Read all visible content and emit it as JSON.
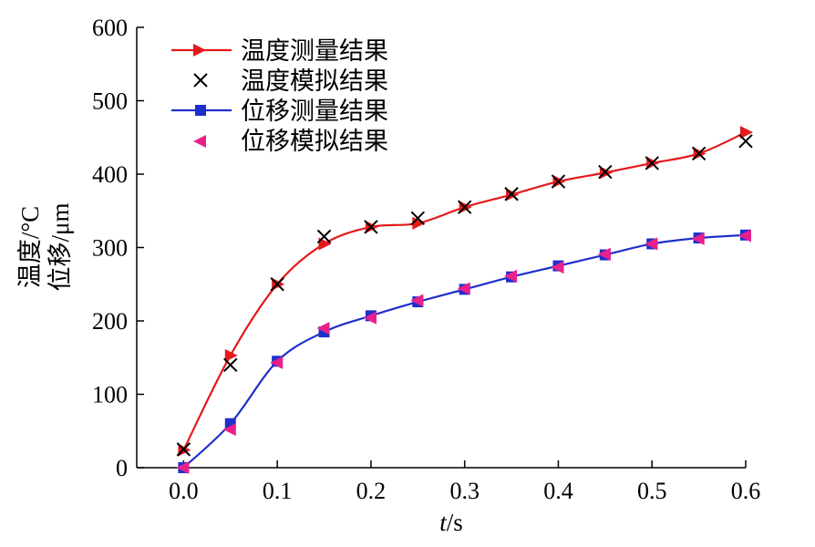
{
  "chart_data": {
    "type": "line",
    "x": [
      0.0,
      0.05,
      0.1,
      0.15,
      0.2,
      0.25,
      0.3,
      0.35,
      0.4,
      0.45,
      0.5,
      0.55,
      0.6
    ],
    "xticks": [
      "0.0",
      "0.1",
      "0.2",
      "0.3",
      "0.4",
      "0.5",
      "0.6"
    ],
    "xtick_values": [
      0.0,
      0.1,
      0.2,
      0.3,
      0.4,
      0.5,
      0.6
    ],
    "yticks": [
      "0",
      "100",
      "200",
      "300",
      "400",
      "500",
      "600"
    ],
    "ytick_values": [
      0,
      100,
      200,
      300,
      400,
      500,
      600
    ],
    "xlim": [
      -0.05,
      0.6
    ],
    "ylim": [
      0,
      600
    ],
    "xlabel_italic": "t",
    "xlabel_rest": "/s",
    "ylabel_line1": "温度/°C",
    "ylabel_line2": "位移/μm",
    "legend_position": "top-left",
    "series": [
      {
        "name": "温度测量结果",
        "kind": "line-marker",
        "marker": "triangle-right",
        "color": "#e41a1c",
        "values": [
          24,
          153,
          250,
          305,
          328,
          333,
          355,
          372,
          390,
          402,
          415,
          428,
          457
        ]
      },
      {
        "name": "温度模拟结果",
        "kind": "marker-only",
        "marker": "x",
        "color": "#000000",
        "values": [
          25,
          140,
          250,
          315,
          328,
          340,
          355,
          373,
          390,
          403,
          415,
          428,
          445
        ]
      },
      {
        "name": "位移测量结果",
        "kind": "line-marker",
        "marker": "square",
        "color": "#1f2fcc",
        "values": [
          0,
          60,
          145,
          185,
          207,
          226,
          243,
          260,
          275,
          290,
          305,
          313,
          317
        ]
      },
      {
        "name": "位移模拟结果",
        "kind": "marker-only",
        "marker": "triangle-left",
        "color": "#e8208c",
        "values": [
          0,
          52,
          143,
          190,
          204,
          228,
          244,
          261,
          273,
          291,
          305,
          312,
          316
        ]
      }
    ]
  }
}
